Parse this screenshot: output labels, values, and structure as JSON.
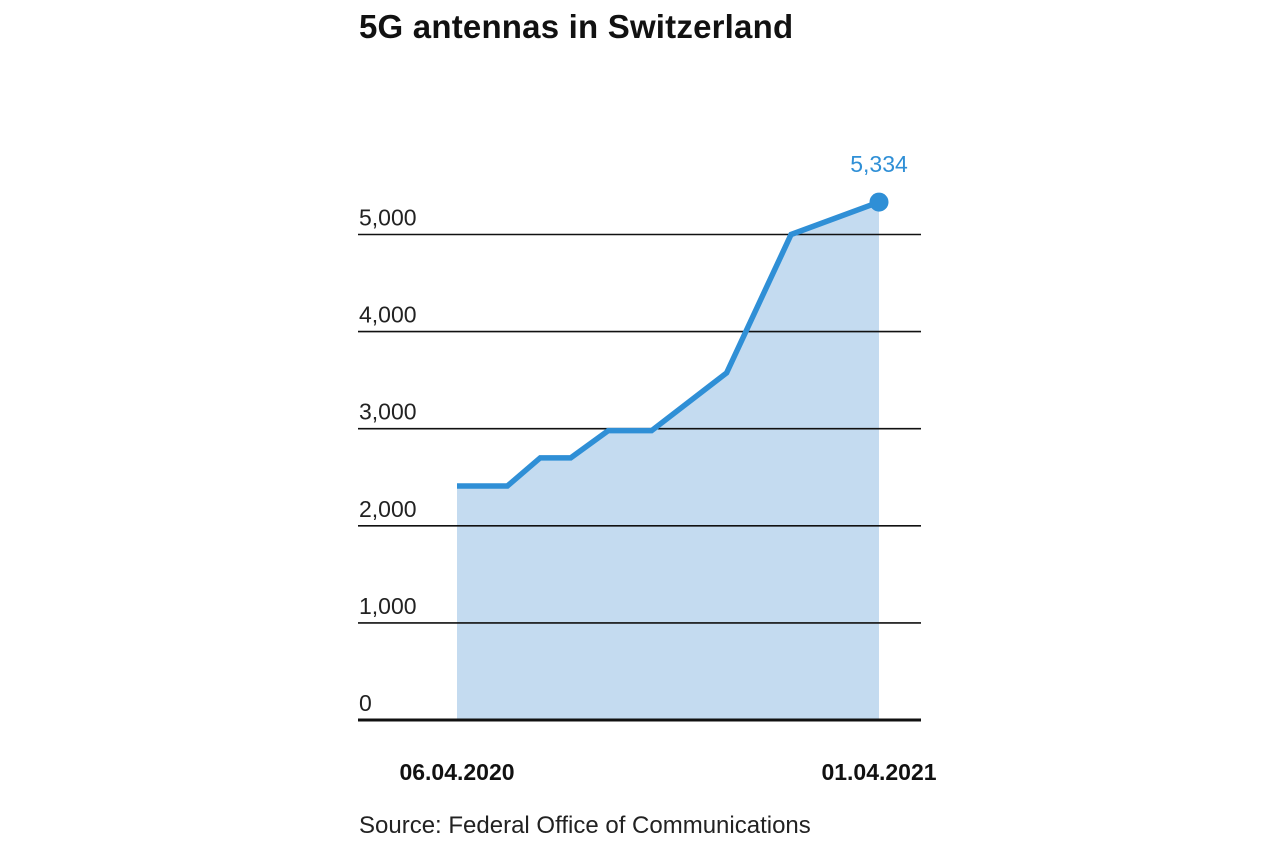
{
  "chart_data": {
    "type": "area",
    "title": "5G antennas in Switzerland",
    "source": "Source: Federal Office of Communications",
    "xlabel": "",
    "ylabel": "",
    "ylim": [
      0,
      5500
    ],
    "yticks": [
      0,
      1000,
      2000,
      3000,
      4000,
      5000
    ],
    "ytick_labels": [
      "0",
      "1,000",
      "2,000",
      "3,000",
      "4,000",
      "5,000"
    ],
    "x_tick_labels": [
      {
        "day": 0,
        "label": "06.04.2020"
      },
      {
        "day": 360,
        "label": "01.04.2021"
      }
    ],
    "x_range_days": [
      0,
      360
    ],
    "grid": true,
    "series": [
      {
        "name": "5G antennas",
        "color": "#2f8fd6",
        "fill": "#c4dbf0",
        "points": [
          {
            "day": 0,
            "value": 2410
          },
          {
            "day": 43,
            "value": 2410
          },
          {
            "day": 71,
            "value": 2700
          },
          {
            "day": 97,
            "value": 2700
          },
          {
            "day": 129,
            "value": 2980
          },
          {
            "day": 166,
            "value": 2980
          },
          {
            "day": 230,
            "value": 3575
          },
          {
            "day": 285,
            "value": 5000
          },
          {
            "day": 360,
            "value": 5334
          }
        ]
      }
    ],
    "annotations": [
      {
        "day": 360,
        "value": 5334,
        "text": "5,334"
      }
    ]
  }
}
